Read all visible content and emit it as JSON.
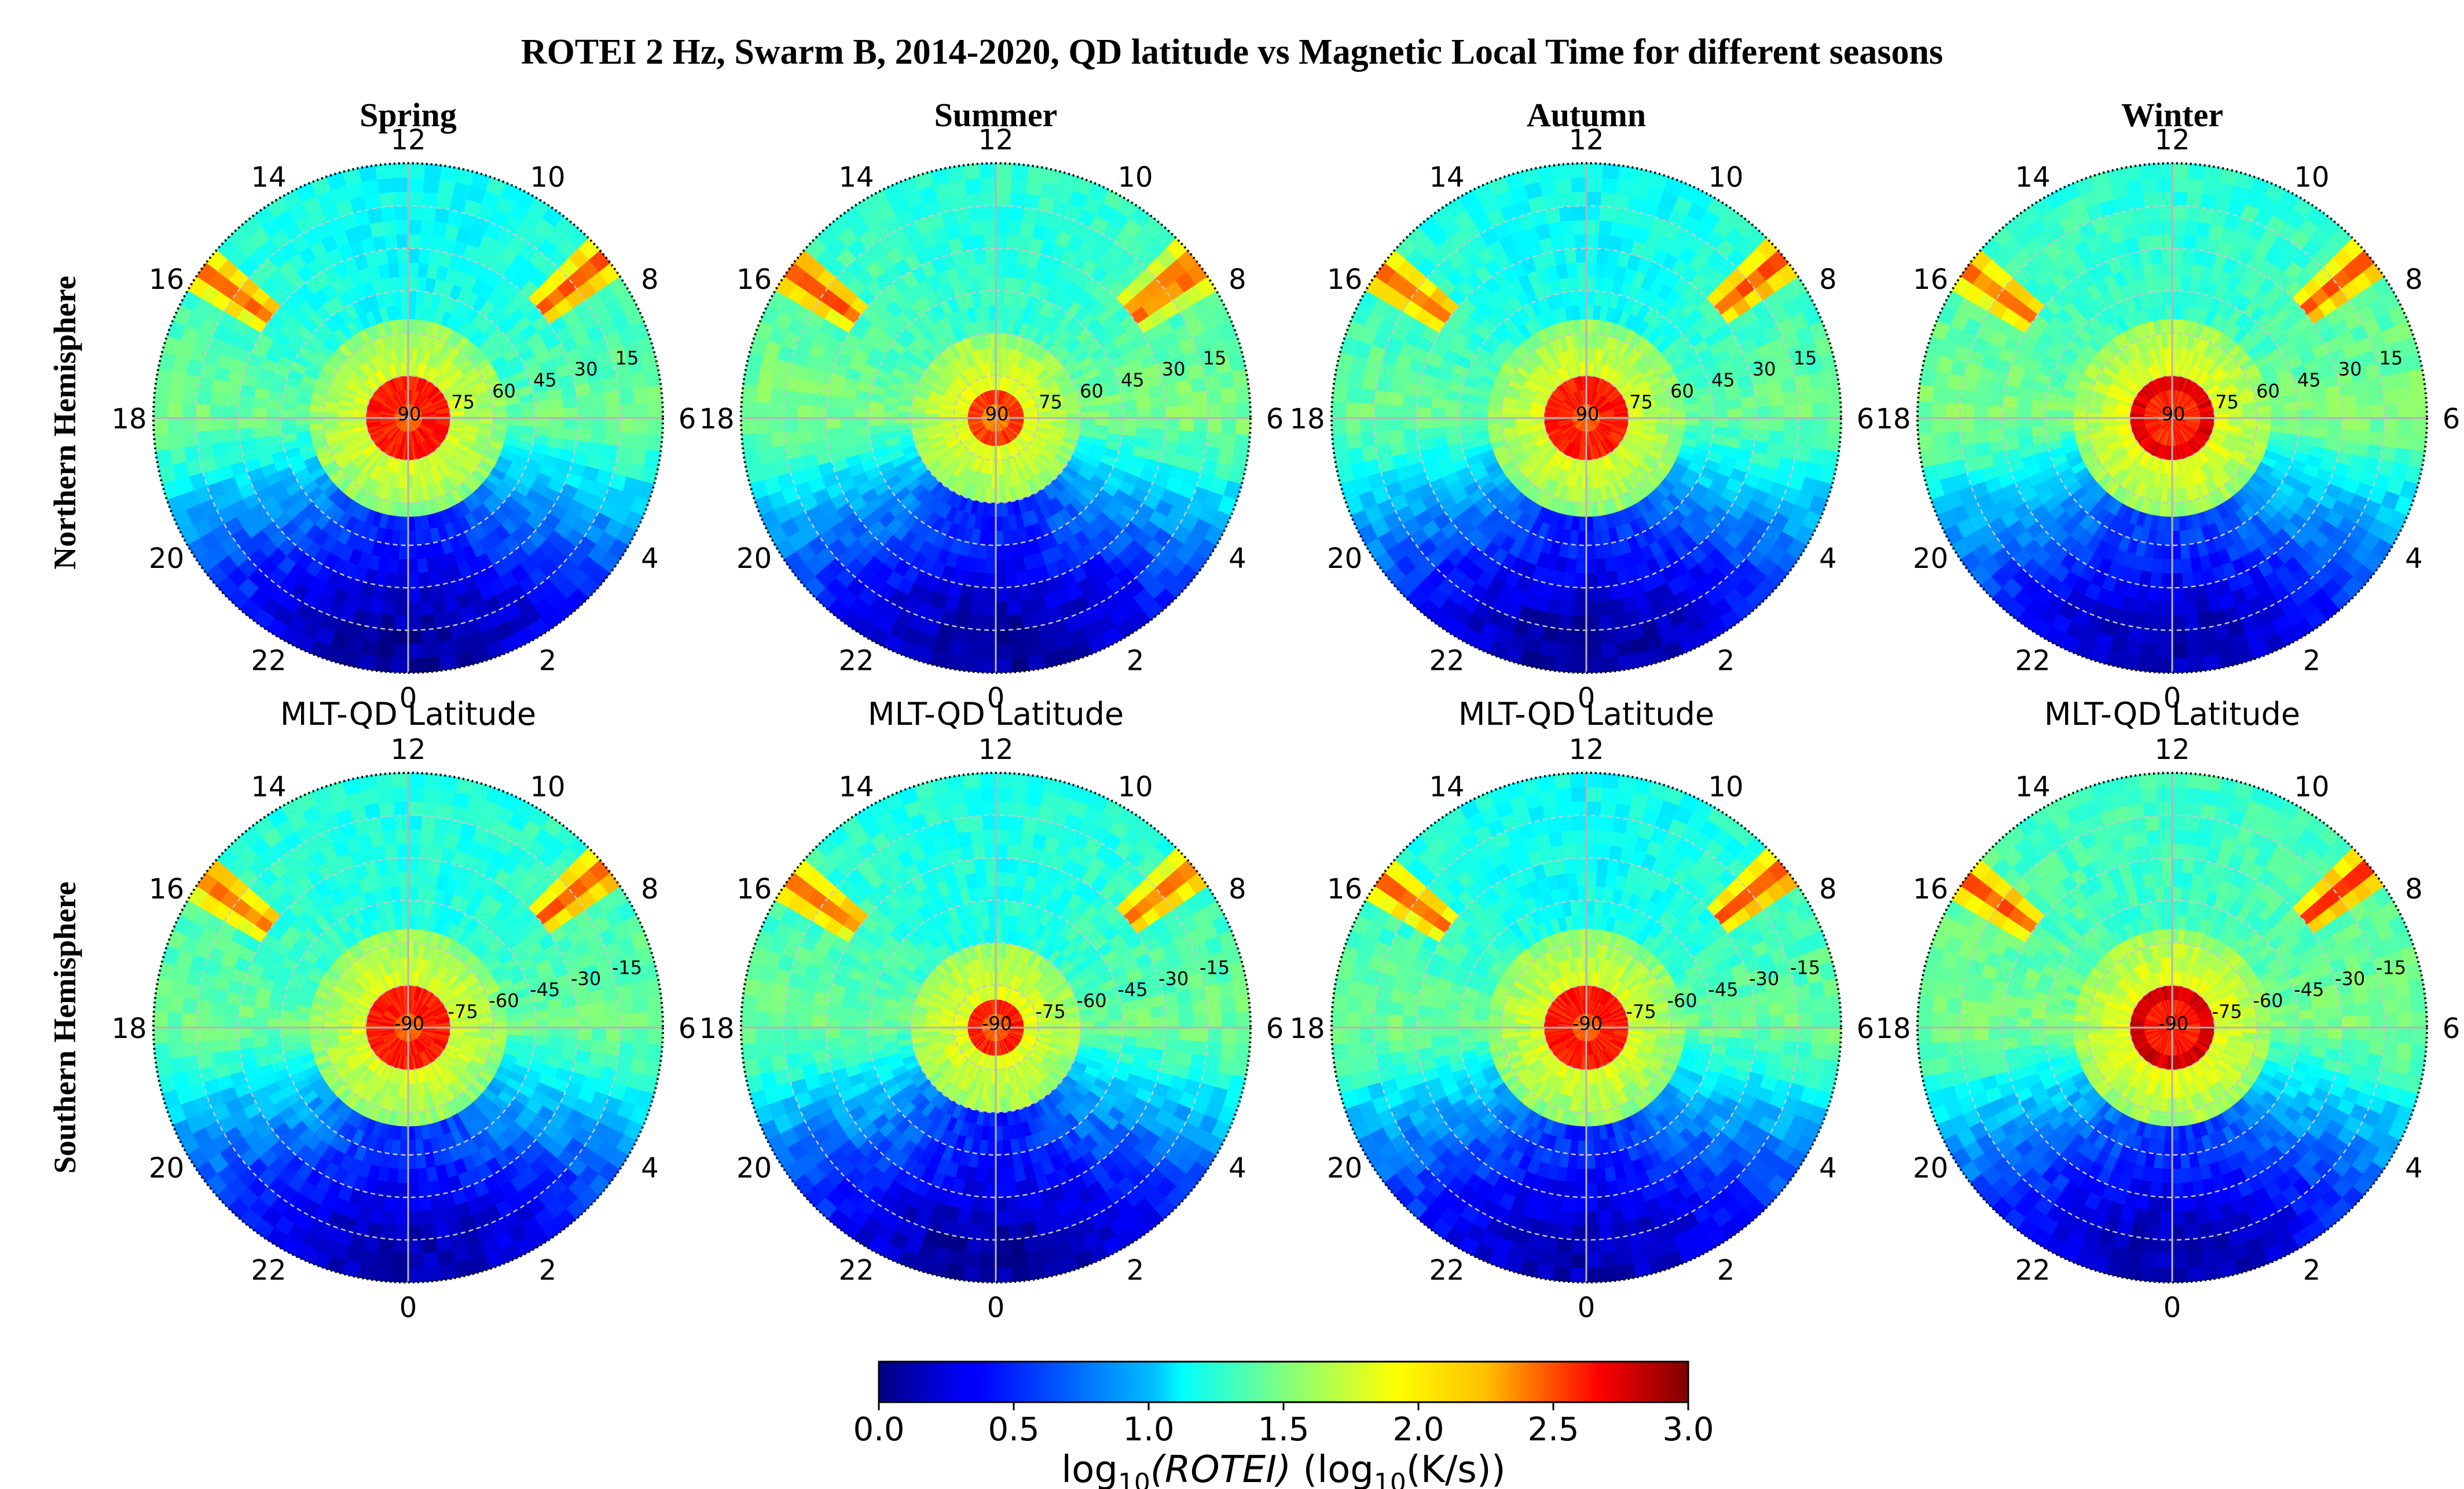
{
  "figure": {
    "title": "ROTEI 2 Hz, Swarm B, 2014-2020, QD latitude vs Magnetic Local Time for different seasons"
  },
  "chart_data": {
    "type": "heatmap",
    "projection": "polar",
    "title": "ROTEI 2 Hz, Swarm B, 2014-2020, QD latitude vs Magnetic Local Time for different seasons",
    "seasons": [
      "Spring",
      "Summer",
      "Autumn",
      "Winter"
    ],
    "rows": [
      {
        "label": "Northern Hemisphere",
        "radial_ticks": [
          "90",
          "75",
          "60",
          "45",
          "30",
          "15"
        ]
      },
      {
        "label": "Southern Hemisphere",
        "radial_ticks": [
          "-90",
          "-75",
          "-60",
          "-45",
          "-30",
          "-15"
        ]
      }
    ],
    "mlt_ticks": [
      "12",
      "10",
      "8",
      "6",
      "4",
      "2",
      "0",
      "22",
      "20",
      "18",
      "16",
      "14"
    ],
    "panel_xlabel": "MLT-QD Latitude",
    "colorbar": {
      "label": "log₁₀(ROTEI) (log₁₀(K/s))",
      "label_parts": {
        "pre": "log",
        "sub": "10",
        "var": "(ROTEI)",
        "mid": " (log",
        "sub2": "10",
        "unit": "(K/s))"
      },
      "min": 0.0,
      "max": 3.0,
      "colormap": "jet",
      "ticks": [
        "0.0",
        "0.5",
        "1.0",
        "1.5",
        "2.0",
        "2.5",
        "3.0"
      ]
    },
    "panels": [
      {
        "row": 0,
        "season": "Spring",
        "cap_value": 2.55,
        "cap_radius_deg": 13,
        "arms": [
          {
            "mlt": 8.6,
            "value": 2.4
          },
          {
            "mlt": 15.6,
            "value": 2.3
          }
        ],
        "night_value": 0.45,
        "day_value": 1.15,
        "side_value": 1.45
      },
      {
        "row": 0,
        "season": "Summer",
        "cap_value": 2.45,
        "cap_radius_deg": 11,
        "arms": [
          {
            "mlt": 8.5,
            "value": 2.5
          },
          {
            "mlt": 15.6,
            "value": 2.4
          }
        ],
        "night_value": 0.45,
        "day_value": 1.25,
        "side_value": 1.5
      },
      {
        "row": 0,
        "season": "Autumn",
        "cap_value": 2.55,
        "cap_radius_deg": 13,
        "arms": [
          {
            "mlt": 8.6,
            "value": 2.4
          },
          {
            "mlt": 15.6,
            "value": 2.3
          }
        ],
        "night_value": 0.45,
        "day_value": 1.15,
        "side_value": 1.45
      },
      {
        "row": 0,
        "season": "Winter",
        "cap_value": 2.7,
        "cap_radius_deg": 16,
        "arms": [
          {
            "mlt": 8.6,
            "value": 2.4
          },
          {
            "mlt": 15.6,
            "value": 2.3
          }
        ],
        "night_value": 0.5,
        "day_value": 1.25,
        "side_value": 1.5
      },
      {
        "row": 1,
        "season": "Spring",
        "cap_value": 2.55,
        "cap_radius_deg": 13,
        "arms": [
          {
            "mlt": 8.6,
            "value": 2.4
          },
          {
            "mlt": 15.6,
            "value": 2.3
          }
        ],
        "night_value": 0.5,
        "day_value": 1.2,
        "side_value": 1.45
      },
      {
        "row": 1,
        "season": "Summer",
        "cap_value": 2.55,
        "cap_radius_deg": 11,
        "arms": [
          {
            "mlt": 8.6,
            "value": 2.3
          },
          {
            "mlt": 15.6,
            "value": 2.3
          }
        ],
        "night_value": 0.45,
        "day_value": 1.2,
        "side_value": 1.45
      },
      {
        "row": 1,
        "season": "Autumn",
        "cap_value": 2.55,
        "cap_radius_deg": 13,
        "arms": [
          {
            "mlt": 8.6,
            "value": 2.4
          },
          {
            "mlt": 15.6,
            "value": 2.3
          }
        ],
        "night_value": 0.5,
        "day_value": 1.15,
        "side_value": 1.45
      },
      {
        "row": 1,
        "season": "Winter",
        "cap_value": 2.75,
        "cap_radius_deg": 17,
        "arms": [
          {
            "mlt": 8.6,
            "value": 2.5
          },
          {
            "mlt": 15.6,
            "value": 2.4
          }
        ],
        "night_value": 0.5,
        "day_value": 1.3,
        "side_value": 1.5
      }
    ]
  }
}
